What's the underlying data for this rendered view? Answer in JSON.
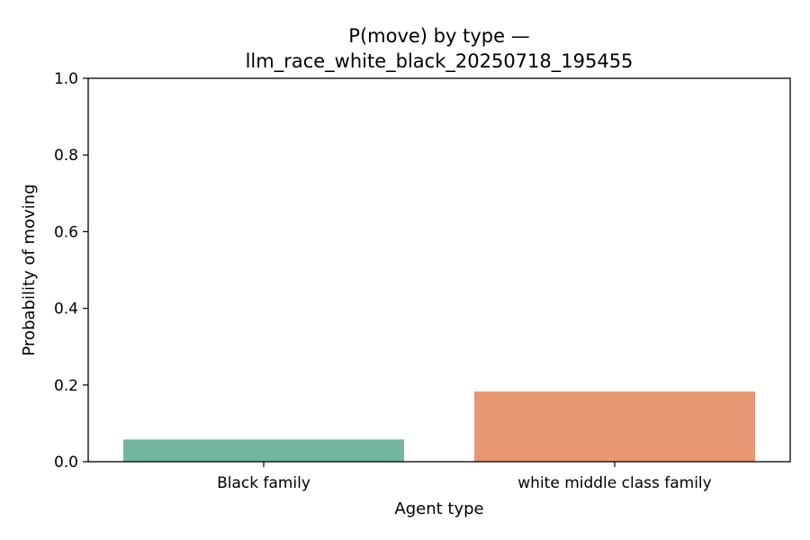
{
  "chart_data": {
    "type": "bar",
    "title_line1": "P(move) by type —",
    "title_line2": "llm_race_white_black_20250718_195455",
    "xlabel": "Agent type",
    "ylabel": "Probability of moving",
    "categories": [
      "Black family",
      "white middle class family"
    ],
    "values": [
      0.058,
      0.183
    ],
    "colors": [
      "#73b6a0",
      "#e89775"
    ],
    "ylim": [
      0,
      1.0
    ],
    "yticks": [
      0.0,
      0.2,
      0.4,
      0.6,
      0.8,
      1.0
    ],
    "ytick_labels": [
      "0.0",
      "0.2",
      "0.4",
      "0.6",
      "0.8",
      "1.0"
    ],
    "grid": false,
    "legend": "none"
  }
}
